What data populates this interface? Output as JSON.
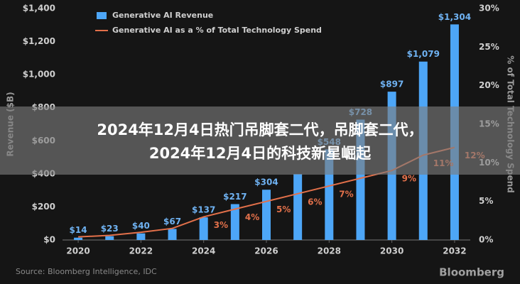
{
  "chart_data": {
    "type": "bar-line",
    "x": [
      2020,
      2021,
      2022,
      2023,
      2024,
      2025,
      2026,
      2027,
      2028,
      2029,
      2030,
      2031,
      2032
    ],
    "xlim": [
      2019.5,
      2032.5
    ],
    "xticks": [
      2020,
      2022,
      2024,
      2026,
      2028,
      2030,
      2032
    ],
    "series": [
      {
        "name": "Generative AI Revenue",
        "color": "#4da6f7",
        "kind": "bar",
        "values": [
          14,
          23,
          40,
          67,
          137,
          217,
          304,
          399,
          548,
          728,
          897,
          1079,
          1304
        ],
        "value_labels": [
          "$14",
          "$23",
          "$40",
          "$67",
          "$137",
          "$217",
          "$304",
          null,
          "$548",
          "$728",
          "$897",
          "$1,079",
          "$1,304"
        ]
      },
      {
        "name": "Generative AI as a % of Total Technology Spend",
        "color": "#e2704a",
        "kind": "line",
        "axis": "y2",
        "values": [
          0.4,
          0.6,
          1,
          1.5,
          3,
          4,
          5,
          6,
          7,
          8,
          9,
          11,
          12
        ],
        "value_labels": [
          null,
          null,
          null,
          null,
          "3%",
          "4%",
          "5%",
          "6%",
          "7%",
          null,
          "9%",
          "11%",
          "12%"
        ]
      }
    ],
    "ylabel": "Revenue ($B)",
    "y2label": "% of Total Technology Spend",
    "ylim": [
      0,
      1400
    ],
    "yticks": [
      {
        "value": 0,
        "label": "$0"
      },
      {
        "value": 200,
        "label": "$200"
      },
      {
        "value": 400,
        "label": "$400"
      },
      {
        "value": 600,
        "label": "$600"
      },
      {
        "value": 800,
        "label": "$800"
      },
      {
        "value": 1000,
        "label": "$1,000"
      },
      {
        "value": 1200,
        "label": "$1,200"
      },
      {
        "value": 1400,
        "label": "$1,400"
      }
    ],
    "y2lim": [
      0,
      30
    ],
    "y2ticks": [
      {
        "value": 0,
        "label": "0%"
      },
      {
        "value": 5,
        "label": "5%"
      },
      {
        "value": 10,
        "label": "10%"
      },
      {
        "value": 15,
        "label": "15%"
      },
      {
        "value": 20,
        "label": "20%"
      },
      {
        "value": 25,
        "label": "25%"
      },
      {
        "value": 30,
        "label": "30%"
      }
    ],
    "source": "Source: Bloomberg Intelligence, IDC",
    "brand": "Bloomberg"
  },
  "banner": {
    "line1": "2024年12月4日热门吊脚套二代，吊脚套二代，",
    "line2": "2024年12月4日的科技新星崛起"
  }
}
